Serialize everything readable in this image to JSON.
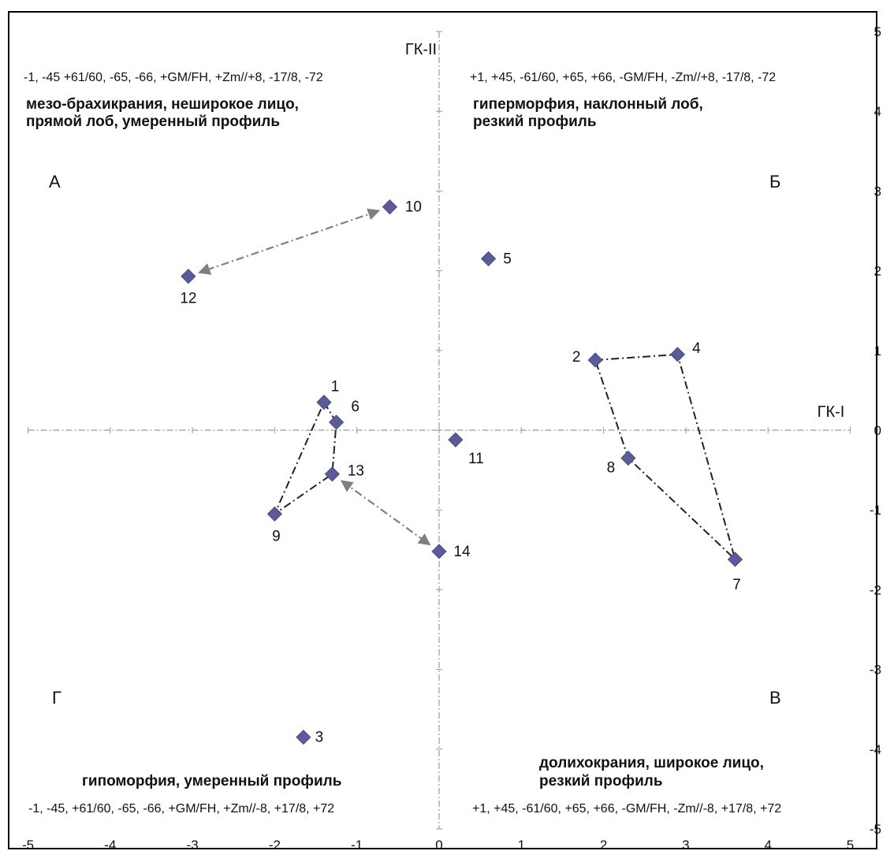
{
  "chart_data": {
    "type": "scatter",
    "x_axis_title": "ГК-I",
    "y_axis_title": "ГК-II",
    "xlim": [
      -5,
      5
    ],
    "ylim": [
      -5,
      5
    ],
    "x_ticks": [
      "-5",
      "-4",
      "-3",
      "-2",
      "-1",
      "0",
      "1",
      "2",
      "3",
      "4",
      "5"
    ],
    "y_ticks": [
      "5",
      "4",
      "3",
      "2",
      "1",
      "0",
      "-1",
      "-2",
      "-3",
      "-4",
      "-5"
    ],
    "grid": false,
    "marker_color": "#5b5b9a",
    "connector_color": "#222222",
    "arrow_color": "#7f7f7f",
    "points": [
      {
        "label": "1",
        "x": -1.4,
        "y": 0.35
      },
      {
        "label": "2",
        "x": 1.9,
        "y": 0.88
      },
      {
        "label": "3",
        "x": -1.65,
        "y": -3.85
      },
      {
        "label": "4",
        "x": 2.9,
        "y": 0.95
      },
      {
        "label": "5",
        "x": 0.6,
        "y": 2.15
      },
      {
        "label": "6",
        "x": -1.25,
        "y": 0.1
      },
      {
        "label": "7",
        "x": 3.6,
        "y": -1.62
      },
      {
        "label": "8",
        "x": 2.3,
        "y": -0.35
      },
      {
        "label": "9",
        "x": -2.0,
        "y": -1.05
      },
      {
        "label": "10",
        "x": -0.6,
        "y": 2.8
      },
      {
        "label": "11",
        "x": 0.2,
        "y": -0.12
      },
      {
        "label": "12",
        "x": -3.05,
        "y": 1.93
      },
      {
        "label": "13",
        "x": -1.3,
        "y": -0.55
      },
      {
        "label": "14",
        "x": 0.0,
        "y": -1.52
      }
    ],
    "polygons": [
      [
        "1",
        "6",
        "13",
        "9"
      ],
      [
        "2",
        "4",
        "7",
        "8"
      ]
    ],
    "arrows": [
      {
        "from": "10",
        "to": "12"
      },
      {
        "from": "13",
        "to": "14"
      }
    ],
    "quadrants": {
      "A": {
        "letter": "А",
        "codes": "-1, -45 +61/60, -65, -66, +GM/FH, +Zm//+8, -17/8, -72",
        "desc_line1": "мезо-брахикрания, неширокое лицо,",
        "desc_line2": "прямой лоб, умеренный профиль"
      },
      "B": {
        "letter": "Б",
        "codes": "+1, +45, -61/60, +65, +66, -GM/FH, -Zm//+8, -17/8, -72",
        "desc_line1": "гиперморфия, наклонный лоб,",
        "desc_line2": "резкий профиль"
      },
      "C": {
        "letter": "В",
        "codes": "+1, +45, -61/60, +65, +66, -GM/FH, -Zm//-8, +17/8, +72",
        "desc_line1": "долихокрания, широкое лицо,",
        "desc_line2": "резкий профиль"
      },
      "D": {
        "letter": "Г",
        "codes": "-1, -45, +61/60, -65, -66, +GM/FH, +Zm//-8, +17/8, +72",
        "desc_line1": "гипоморфия, умеренный профиль",
        "desc_line2": ""
      }
    }
  }
}
